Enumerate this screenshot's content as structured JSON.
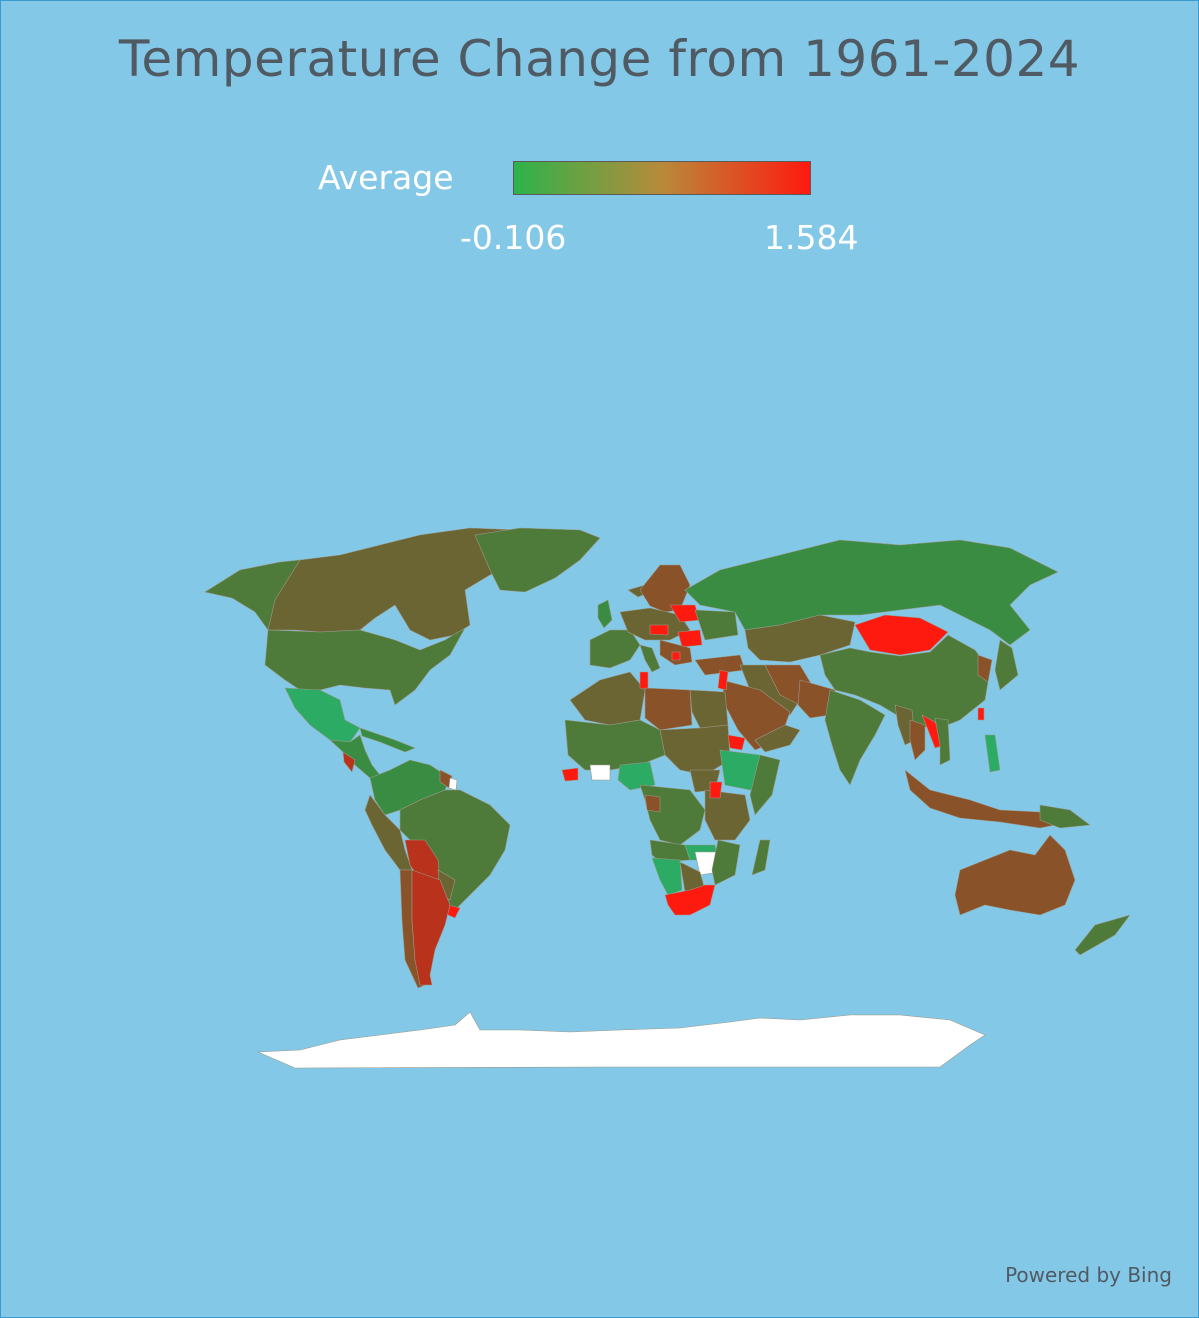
{
  "title": "Temperature Change from 1961-2024",
  "legend": {
    "label": "Average",
    "min_label": "-0.106",
    "max_label": "1.584",
    "min_value": -0.106,
    "max_value": 1.584,
    "color_low": "#2db34a",
    "color_mid": "#b88a3a",
    "color_high": "#ff1a0f"
  },
  "colors": {
    "ocean": "#84c8e8",
    "no_data": "#ffffff",
    "dark_green": "#3a8c43",
    "olive": "#6b6534",
    "green_brown": "#4f7b3a",
    "brown": "#8a5228",
    "red_brown": "#b8321c",
    "red": "#ff1a0f",
    "teal_green": "#2bab64"
  },
  "credit": "Powered by Bing"
}
